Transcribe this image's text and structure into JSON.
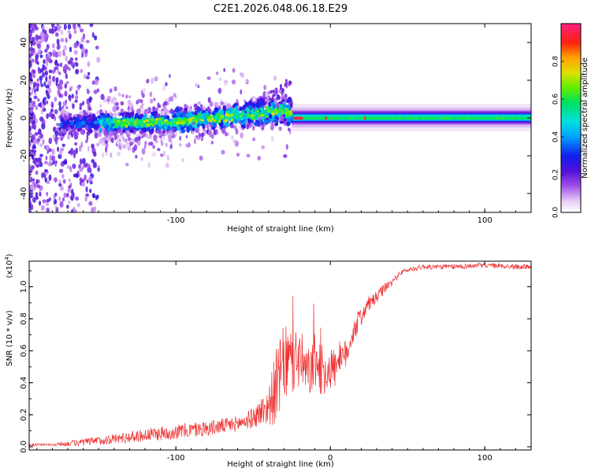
{
  "title": "C2E1.2026.048.06.18.E29",
  "chart_data": [
    {
      "type": "heatmap",
      "title": "C2E1.2026.048.06.18.E29",
      "xlabel": "Height of straight line (km)",
      "ylabel": "Frequency (Hz)",
      "xlim": [
        -195,
        130
      ],
      "ylim": [
        -50,
        50
      ],
      "xticks": [
        -100,
        0,
        100
      ],
      "xtick_labels": [
        "-100",
        "",
        "100"
      ],
      "yticks": [
        -40,
        -20,
        0,
        20,
        40
      ],
      "ytick_labels": [
        "-40",
        "-20",
        "0",
        "20",
        "40"
      ],
      "colorbar": {
        "label": "Normalized spectral amplitude",
        "range": [
          0,
          1
        ],
        "ticks": [
          0.0,
          0.2,
          0.4,
          0.6,
          0.8
        ],
        "tick_labels": [
          "0.0",
          "0.2",
          "0.4",
          "0.6",
          "0.8"
        ]
      },
      "features": {
        "noise_region_x": [
          -195,
          -150
        ],
        "signal_band_center_hz": 0,
        "band_drift_hz": {
          "x": [
            -170,
            -100,
            -50,
            -30,
            -20,
            130
          ],
          "y": [
            -3,
            -2,
            2,
            4,
            1,
            0
          ]
        },
        "peak_amplitude_x": [
          -25,
          20
        ]
      }
    },
    {
      "type": "line",
      "xlabel": "Height of straight line (km)",
      "ylabel": "SNR (10 * v/v)",
      "y_multiplier": "(x10",
      "y_multiplier_exp": "4",
      "y_multiplier_close": ")",
      "xlim": [
        -195,
        130
      ],
      "ylim": [
        -0.02,
        1.16
      ],
      "xticks": [
        -100,
        0,
        100
      ],
      "xtick_labels": [
        "-100",
        "0",
        "100"
      ],
      "yticks": [
        0.0,
        0.2,
        0.4,
        0.6,
        0.8,
        1.0
      ],
      "ytick_labels": [
        "0.0",
        "0.2",
        "0.4",
        "0.6",
        "0.8",
        "1.0"
      ],
      "series": [
        {
          "name": "SNR",
          "color": "#ee3030",
          "x": [
            -195,
            -180,
            -160,
            -140,
            -120,
            -100,
            -80,
            -60,
            -50,
            -40,
            -35,
            -30,
            -25,
            -20,
            -15,
            -10,
            -5,
            0,
            5,
            10,
            15,
            20,
            25,
            30,
            35,
            40,
            45,
            50,
            60,
            80,
            100,
            120,
            130
          ],
          "values": [
            0.01,
            0.01,
            0.02,
            0.04,
            0.06,
            0.08,
            0.1,
            0.13,
            0.16,
            0.22,
            0.3,
            0.45,
            0.45,
            0.5,
            0.4,
            0.48,
            0.42,
            0.45,
            0.46,
            0.55,
            0.7,
            0.8,
            0.88,
            0.92,
            0.98,
            1.02,
            1.08,
            1.1,
            1.12,
            1.12,
            1.13,
            1.12,
            1.12
          ],
          "noise_amp": [
            0.01,
            0.01,
            0.03,
            0.04,
            0.05,
            0.06,
            0.06,
            0.06,
            0.08,
            0.15,
            0.3,
            0.3,
            0.3,
            0.25,
            0.2,
            0.22,
            0.2,
            0.18,
            0.15,
            0.12,
            0.1,
            0.08,
            0.06,
            0.05,
            0.04,
            0.03,
            0.02,
            0.02,
            0.02,
            0.02,
            0.02,
            0.02,
            0.02
          ]
        }
      ]
    }
  ]
}
